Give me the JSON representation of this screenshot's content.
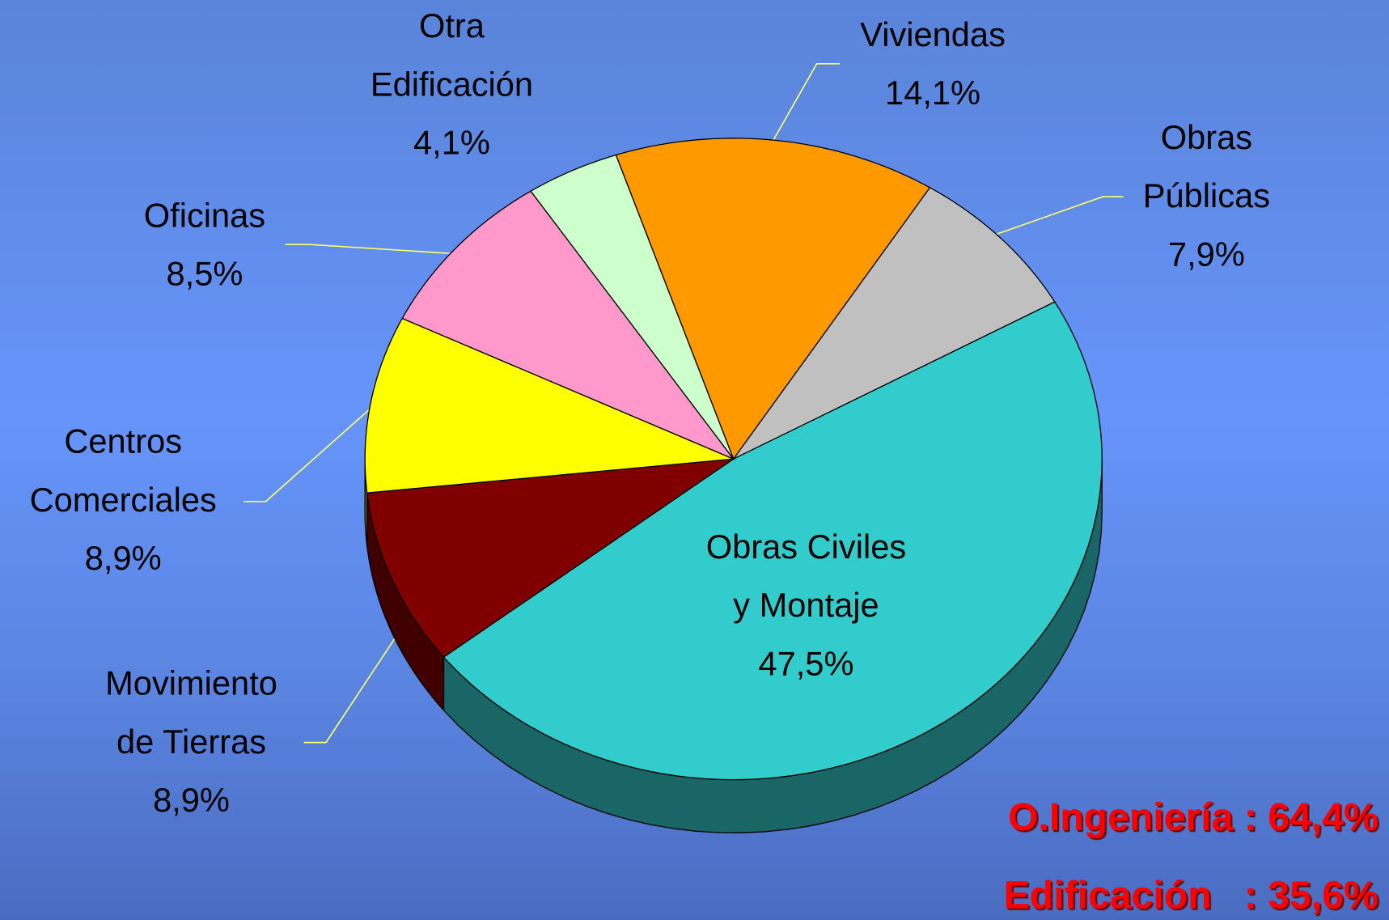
{
  "chart_data": {
    "type": "pie",
    "categories": [
      "Viviendas",
      "Obras\nPúblicas",
      "Obras Civiles\ny Montaje",
      "Movimiento\nde Tierras",
      "Centros\nComerciales",
      "Oficinas",
      "Otra\nEdificación"
    ],
    "values": [
      14.1,
      7.9,
      47.5,
      8.9,
      8.9,
      8.5,
      4.1
    ],
    "value_labels": [
      "14,1%",
      "7,9%",
      "47,5%",
      "8,9%",
      "8,9%",
      "8,5%",
      "4,1%"
    ],
    "colors": [
      "#ff9900",
      "#c0c0c0",
      "#33cccc",
      "#800000",
      "#ffff00",
      "#ff99cc",
      "#ccffcc"
    ],
    "annotations": [
      "O.Ingeniería : 64,4%",
      "Edificación   : 35,6%"
    ]
  }
}
